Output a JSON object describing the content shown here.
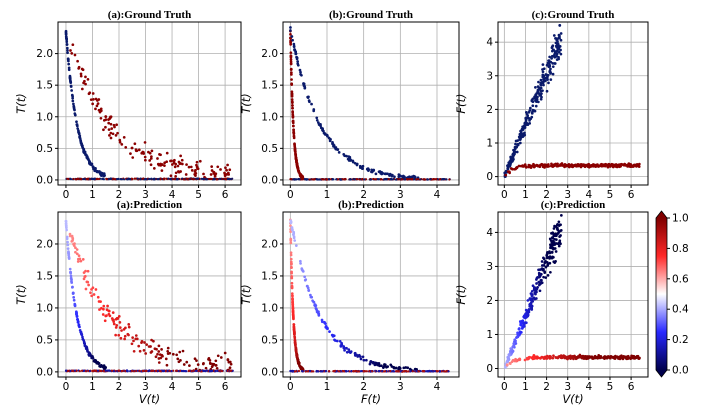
{
  "chart_data": [
    {
      "type": "scatter",
      "title": "(a):Ground Truth",
      "xlabel": "",
      "ylabel": "T(t)",
      "xlim": [
        -0.3,
        6.6
      ],
      "ylim": [
        -0.08,
        2.5
      ],
      "xticks": [
        0,
        1,
        2,
        3,
        4,
        5,
        6
      ],
      "yticks": [
        0.0,
        0.5,
        1.0,
        1.5,
        2.0
      ],
      "ytick_labels": [
        "0.0",
        "0.5",
        "1.0",
        "1.5",
        "2.0"
      ],
      "kind": "a",
      "colors": "truth"
    },
    {
      "type": "scatter",
      "title": "(b):Ground Truth",
      "xlabel": "",
      "ylabel": "T(t)",
      "xlim": [
        -0.2,
        4.6
      ],
      "ylim": [
        -0.08,
        2.5
      ],
      "xticks": [
        0,
        1,
        2,
        3,
        4
      ],
      "yticks": [
        0.0,
        0.5,
        1.0,
        1.5,
        2.0
      ],
      "ytick_labels": [
        "0.0",
        "0.5",
        "1.0",
        "1.5",
        "2.0"
      ],
      "kind": "b",
      "colors": "truth"
    },
    {
      "type": "scatter",
      "title": "(c):Ground Truth",
      "xlabel": "",
      "ylabel": "F(t)",
      "xlim": [
        -0.3,
        6.8
      ],
      "ylim": [
        -0.25,
        4.6
      ],
      "xticks": [
        0,
        1,
        2,
        3,
        4,
        5,
        6
      ],
      "yticks": [
        0,
        1,
        2,
        3,
        4
      ],
      "ytick_labels": [
        "0",
        "1",
        "2",
        "3",
        "4"
      ],
      "kind": "c",
      "colors": "truth"
    },
    {
      "type": "scatter",
      "title": "(a):Prediction",
      "xlabel": "V(t)",
      "ylabel": "T(t)",
      "xlim": [
        -0.3,
        6.6
      ],
      "ylim": [
        -0.08,
        2.5
      ],
      "xticks": [
        0,
        1,
        2,
        3,
        4,
        5,
        6
      ],
      "yticks": [
        0.0,
        0.5,
        1.0,
        1.5,
        2.0
      ],
      "ytick_labels": [
        "0.0",
        "0.5",
        "1.0",
        "1.5",
        "2.0"
      ],
      "kind": "a",
      "colors": "pred"
    },
    {
      "type": "scatter",
      "title": "(b):Prediction",
      "xlabel": "F(t)",
      "ylabel": "T(t)",
      "xlim": [
        -0.2,
        4.6
      ],
      "ylim": [
        -0.08,
        2.5
      ],
      "xticks": [
        0,
        1,
        2,
        3,
        4
      ],
      "yticks": [
        0.0,
        0.5,
        1.0,
        1.5,
        2.0
      ],
      "ytick_labels": [
        "0.0",
        "0.5",
        "1.0",
        "1.5",
        "2.0"
      ],
      "kind": "b",
      "colors": "pred"
    },
    {
      "type": "scatter",
      "title": "(c):Prediction",
      "xlabel": "V(t)",
      "ylabel": "F(t)",
      "xlim": [
        -0.3,
        6.8
      ],
      "ylim": [
        -0.25,
        4.6
      ],
      "xticks": [
        0,
        1,
        2,
        3,
        4,
        5,
        6
      ],
      "yticks": [
        0,
        1,
        2,
        3,
        4
      ],
      "ytick_labels": [
        "0",
        "1",
        "2",
        "3",
        "4"
      ],
      "kind": "c",
      "colors": "pred"
    }
  ],
  "colorbar": {
    "colormap": "seismic",
    "range": [
      0.0,
      1.0
    ],
    "ticks": [
      "0.0",
      "0.2",
      "0.4",
      "0.6",
      "0.8",
      "1.0"
    ],
    "colors": {
      "low": "#00004c",
      "mid_low": "#3a3aff",
      "mid": "#ffffff",
      "mid_high": "#ff3a3a",
      "high": "#800000"
    }
  }
}
